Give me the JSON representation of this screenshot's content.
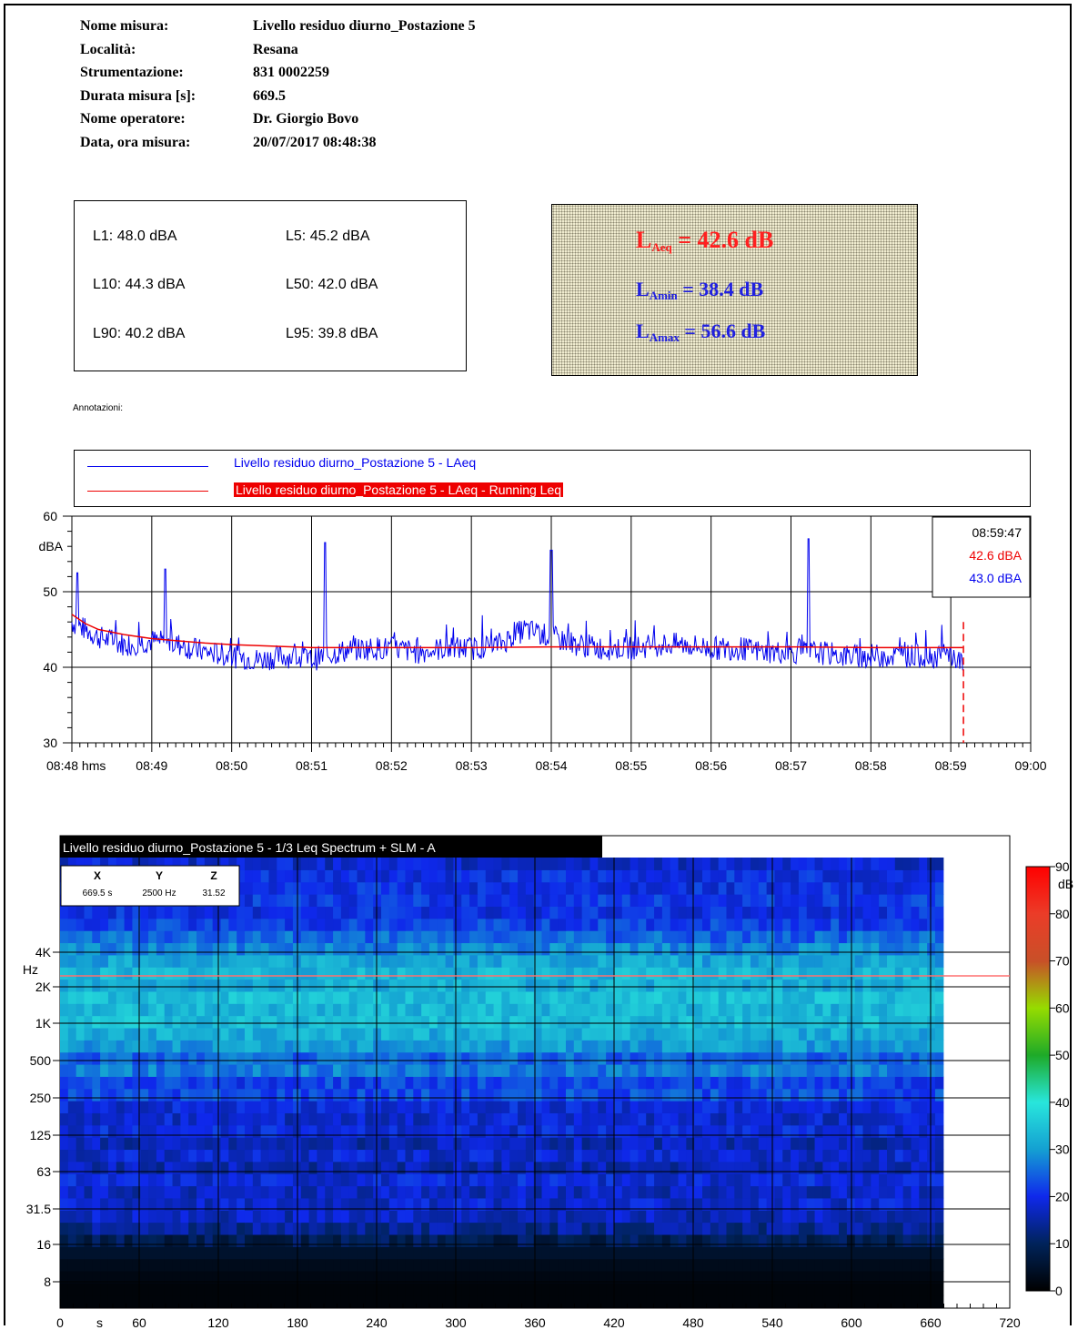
{
  "meta": [
    {
      "label": "Nome misura:",
      "value": "Livello residuo diurno_Postazione 5"
    },
    {
      "label": "Località:",
      "value": "Resana"
    },
    {
      "label": "Strumentazione:",
      "value": "831 0002259"
    },
    {
      "label": "Durata misura [s]:",
      "value": "669.5"
    },
    {
      "label": "Nome operatore:",
      "value": "Dr. Giorgio Bovo"
    },
    {
      "label": "Data, ora misura:",
      "value": "20/07/2017 08:48:38"
    }
  ],
  "percentiles": {
    "L1": "L1: 48.0 dBA",
    "L5": "L5: 45.2 dBA",
    "L10": "L10: 44.3 dBA",
    "L50": "L50: 42.0 dBA",
    "L90": "L90: 40.2 dBA",
    "L95": "L95: 39.8 dBA"
  },
  "summary": {
    "laeq_label": "L",
    "laeq_sub": "Aeq",
    "laeq_value": " = 42.6 dB",
    "lamin_label": "L",
    "lamin_sub": "Amin",
    "lamin_value": " = 38.4 dB",
    "lamax_label": "L",
    "lamax_sub": "Amax",
    "lamax_value": " = 56.6 dB",
    "colors": {
      "laeq": "#ff2020",
      "lamin": "#2020e0",
      "lamax": "#2020e0"
    }
  },
  "annotations_label": "Annotazioni:",
  "legend": [
    {
      "label": "Livello residuo diurno_Postazione 5 - LAeq",
      "color": "#0000ee"
    },
    {
      "label": "Livello residuo diurno_Postazione 5 - LAeq - Running Leq",
      "color": "#ee0000"
    }
  ],
  "cursor_box": {
    "time": "08:59:47",
    "running": "42.6 dBA",
    "laeq": "43.0 dBA"
  },
  "chart_data": [
    {
      "type": "line",
      "ylabel": "dBA",
      "ylim": [
        30,
        60
      ],
      "yticks": [
        "30",
        "40",
        "50",
        "60"
      ],
      "xticks": [
        "08:48 hms",
        "08:49",
        "08:50",
        "08:51",
        "08:52",
        "08:53",
        "08:54",
        "08:55",
        "08:56",
        "08:57",
        "08:58",
        "08:59",
        "09:00"
      ],
      "xlim_s": [
        0,
        720
      ],
      "cursor_s": 669.5,
      "series": [
        {
          "name": "Livello residuo diurno_Postazione 5 - LAeq",
          "x": [
            0,
            20,
            40,
            60,
            80,
            100,
            120,
            140,
            160,
            180,
            200,
            220,
            240,
            260,
            280,
            300,
            320,
            340,
            360,
            380,
            400,
            420,
            440,
            460,
            480,
            500,
            520,
            540,
            560,
            580,
            600,
            620,
            640,
            660,
            669
          ],
          "y": [
            46,
            44,
            43,
            43.5,
            43,
            42,
            41.5,
            41,
            41.5,
            41,
            42,
            42.5,
            42.5,
            42,
            42.5,
            42.5,
            43,
            45,
            44,
            43,
            42.5,
            42.5,
            43,
            43,
            42.5,
            42.5,
            42,
            42,
            42,
            41.5,
            41.5,
            41.5,
            41.5,
            41.5,
            40.5
          ],
          "peaks": [
            [
              4,
              52.5
            ],
            [
              70,
              53
            ],
            [
              190,
              56.5
            ],
            [
              360,
              55.5
            ],
            [
              553,
              57
            ]
          ]
        },
        {
          "name": "Livello residuo diurno_Postazione 5 - LAeq - Running Leq",
          "x": [
            0,
            10,
            20,
            40,
            60,
            80,
            100,
            120,
            150,
            180,
            210,
            240,
            300,
            360,
            420,
            480,
            540,
            600,
            669
          ],
          "y": [
            47,
            45.8,
            45,
            44.3,
            43.8,
            43.5,
            43.2,
            43,
            42.8,
            42.6,
            42.6,
            42.6,
            42.6,
            42.7,
            42.7,
            42.7,
            42.7,
            42.6,
            42.6
          ]
        }
      ]
    },
    {
      "type": "heatmap",
      "title": "Livello residuo diurno_Postazione 5 - 1/3 Leq Spectrum + SLM - A",
      "xlabel": "s",
      "xticks": [
        0,
        60,
        120,
        180,
        240,
        300,
        360,
        420,
        480,
        540,
        600,
        660,
        720
      ],
      "xlim": [
        0,
        720
      ],
      "ylabel": "Hz",
      "yticks": [
        "8",
        "16",
        "31.5",
        "63",
        "125",
        "250",
        "500",
        "1K",
        "2K",
        "4K"
      ],
      "zlabel": "dB",
      "zticks": [
        0,
        10,
        20,
        30,
        40,
        50,
        60,
        70,
        80,
        90
      ],
      "zlim": [
        0,
        90
      ],
      "cursor": {
        "x_label": "X",
        "y_label": "Y",
        "z_label": "Z",
        "x": "669.5 s",
        "y": "2500 Hz",
        "z": "31.52"
      },
      "band_levels_db": [
        1,
        1,
        2,
        3,
        5,
        9,
        14,
        17,
        18,
        17,
        19,
        16,
        18,
        16,
        19,
        18,
        19,
        23,
        22,
        27,
        25,
        30,
        32,
        34,
        33,
        34,
        32,
        33,
        31,
        28,
        25,
        22,
        20,
        21,
        20,
        20,
        18
      ]
    }
  ]
}
